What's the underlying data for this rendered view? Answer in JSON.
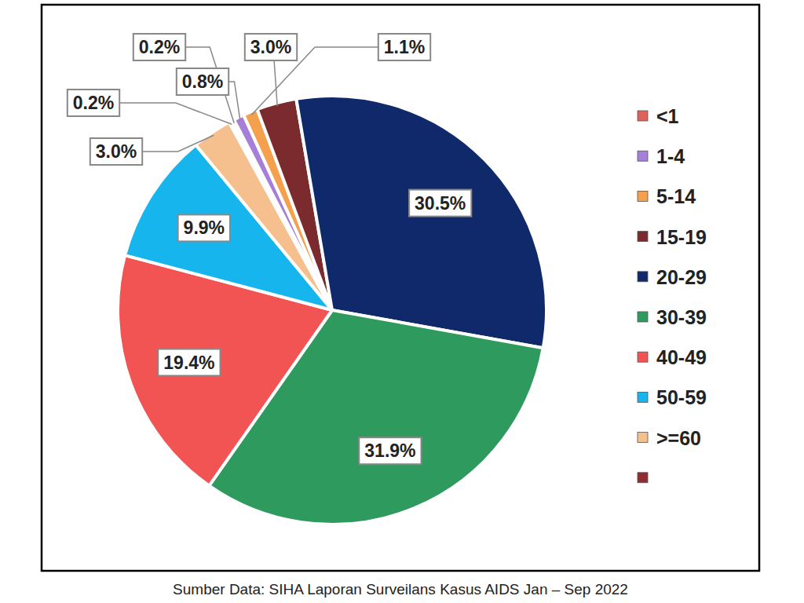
{
  "chart_data": {
    "type": "pie",
    "source": "Sumber Data: SIHA Laporan Surveilans Kasus AIDS Jan – Sep 2022",
    "categories": [
      "<1",
      "1-4",
      "5-14",
      "15-19",
      "20-29",
      "30-39",
      "40-49",
      "50-59",
      ">=60",
      null
    ],
    "values": [
      0.2,
      0.8,
      1.1,
      3.0,
      30.5,
      31.9,
      19.4,
      9.9,
      3.0,
      0.2
    ],
    "value_labels": [
      "0.2%",
      "0.8%",
      "1.1%",
      "3.0%",
      "30.5%",
      "31.9%",
      "19.4%",
      "9.9%",
      "3.0%",
      "0.2%"
    ],
    "colors": [
      "#e0605a",
      "#a680d8",
      "#f4a04c",
      "#7b2b2e",
      "#10296b",
      "#2f9a5e",
      "#f25454",
      "#17b5ee",
      "#f6c08e",
      "#8e2e30"
    ],
    "data_labels": true,
    "legend": "right"
  }
}
